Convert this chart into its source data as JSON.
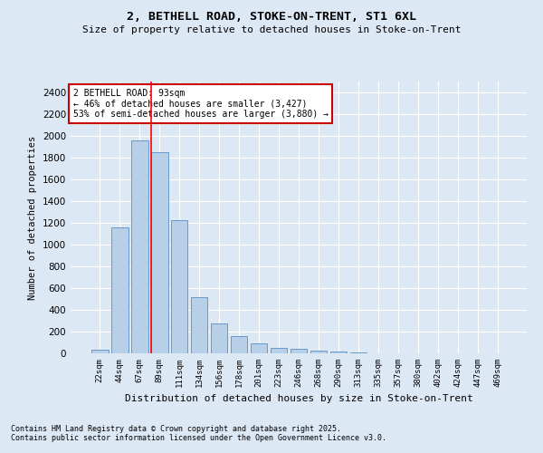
{
  "title1": "2, BETHELL ROAD, STOKE-ON-TRENT, ST1 6XL",
  "title2": "Size of property relative to detached houses in Stoke-on-Trent",
  "xlabel": "Distribution of detached houses by size in Stoke-on-Trent",
  "ylabel": "Number of detached properties",
  "categories": [
    "22sqm",
    "44sqm",
    "67sqm",
    "89sqm",
    "111sqm",
    "134sqm",
    "156sqm",
    "178sqm",
    "201sqm",
    "223sqm",
    "246sqm",
    "268sqm",
    "290sqm",
    "313sqm",
    "335sqm",
    "357sqm",
    "380sqm",
    "402sqm",
    "424sqm",
    "447sqm",
    "469sqm"
  ],
  "values": [
    30,
    1160,
    1960,
    1850,
    1225,
    515,
    275,
    158,
    90,
    50,
    42,
    28,
    15,
    5,
    2,
    2,
    2,
    2,
    2,
    2,
    2
  ],
  "bar_color": "#b8cfe8",
  "bar_edge_color": "#6699cc",
  "bg_color": "#dde8f5",
  "grid_color": "#ffffff",
  "red_line_index": 3,
  "annotation_text": "2 BETHELL ROAD: 93sqm\n← 46% of detached houses are smaller (3,427)\n53% of semi-detached houses are larger (3,880) →",
  "annotation_box_color": "#ffffff",
  "annotation_box_edge": "#cc0000",
  "footnote1": "Contains HM Land Registry data © Crown copyright and database right 2025.",
  "footnote2": "Contains public sector information licensed under the Open Government Licence v3.0.",
  "ylim": [
    0,
    2500
  ],
  "yticks": [
    0,
    200,
    400,
    600,
    800,
    1000,
    1200,
    1400,
    1600,
    1800,
    2000,
    2200,
    2400
  ]
}
